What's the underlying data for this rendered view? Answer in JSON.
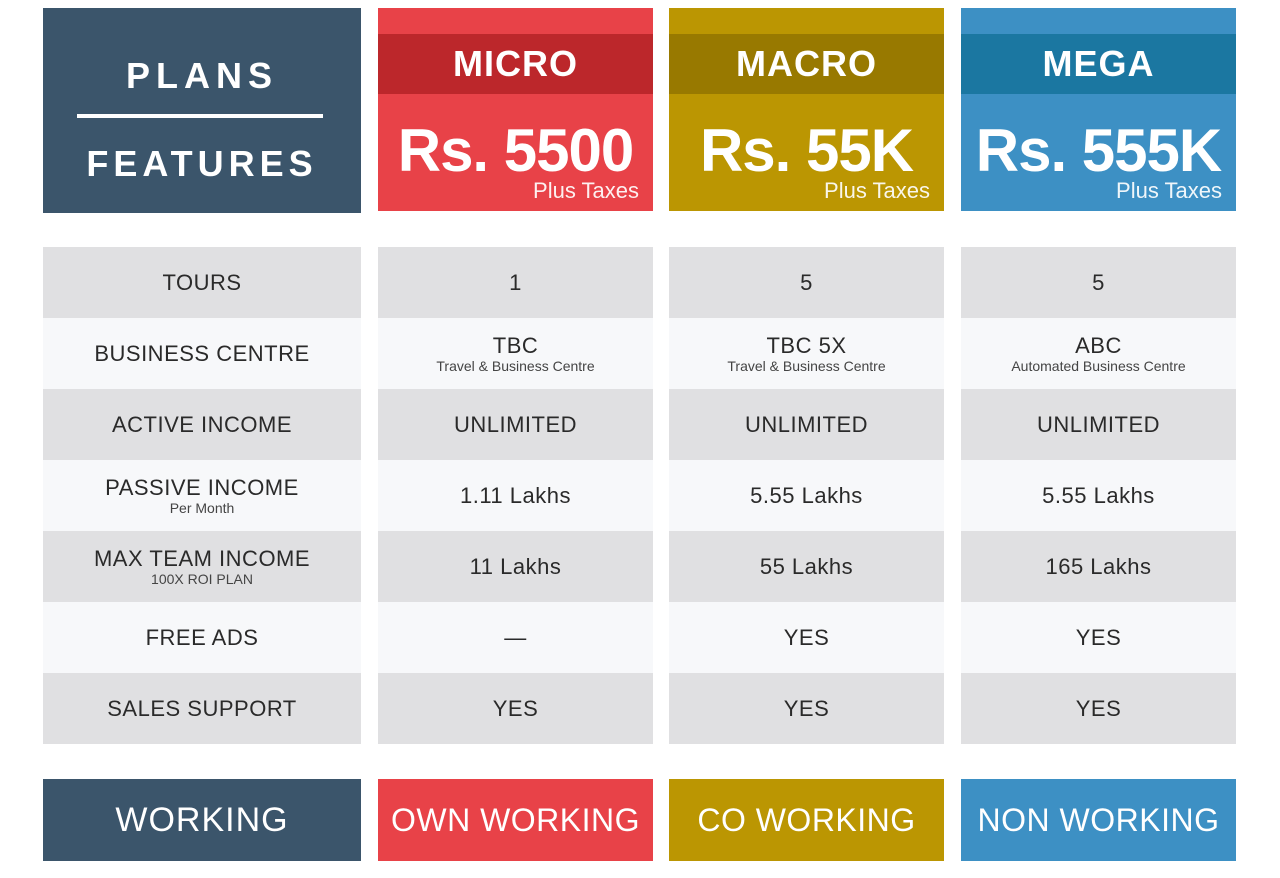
{
  "header": {
    "plans_label": "PLANS",
    "features_label": "FEATURES"
  },
  "plans": [
    {
      "name": "MICRO",
      "price": "Rs. 5500",
      "taxes": "Plus Taxes",
      "color": "#e84248"
    },
    {
      "name": "MACRO",
      "price": "Rs. 55K",
      "taxes": "Plus Taxes",
      "color": "#bb9602"
    },
    {
      "name": "MEGA",
      "price": "Rs. 555K",
      "taxes": "Plus Taxes",
      "color": "#3d90c4"
    }
  ],
  "rows": [
    {
      "feature": "TOURS",
      "feature_sub": "",
      "values": [
        {
          "main": "1",
          "sub": ""
        },
        {
          "main": "5",
          "sub": ""
        },
        {
          "main": "5",
          "sub": ""
        }
      ]
    },
    {
      "feature": "BUSINESS CENTRE",
      "feature_sub": "",
      "values": [
        {
          "main": "TBC",
          "sub": "Travel & Business Centre"
        },
        {
          "main": "TBC 5X",
          "sub": "Travel & Business Centre"
        },
        {
          "main": "ABC",
          "sub": "Automated Business Centre"
        }
      ]
    },
    {
      "feature": "ACTIVE INCOME",
      "feature_sub": "",
      "values": [
        {
          "main": "UNLIMITED",
          "sub": ""
        },
        {
          "main": "UNLIMITED",
          "sub": ""
        },
        {
          "main": "UNLIMITED",
          "sub": ""
        }
      ]
    },
    {
      "feature": "PASSIVE INCOME",
      "feature_sub": "Per Month",
      "values": [
        {
          "main": "1.11 Lakhs",
          "sub": ""
        },
        {
          "main": "5.55 Lakhs",
          "sub": ""
        },
        {
          "main": "5.55 Lakhs",
          "sub": ""
        }
      ]
    },
    {
      "feature": "MAX TEAM INCOME",
      "feature_sub": "100X ROI PLAN",
      "values": [
        {
          "main": "11 Lakhs",
          "sub": ""
        },
        {
          "main": "55 Lakhs",
          "sub": ""
        },
        {
          "main": "165 Lakhs",
          "sub": ""
        }
      ]
    },
    {
      "feature": "FREE ADS",
      "feature_sub": "",
      "values": [
        {
          "main": "—",
          "sub": ""
        },
        {
          "main": "YES",
          "sub": ""
        },
        {
          "main": "YES",
          "sub": ""
        }
      ]
    },
    {
      "feature": "SALES SUPPORT",
      "feature_sub": "",
      "values": [
        {
          "main": "YES",
          "sub": ""
        },
        {
          "main": "YES",
          "sub": ""
        },
        {
          "main": "YES",
          "sub": ""
        }
      ]
    }
  ],
  "footer": {
    "label": "WORKING",
    "values": [
      "OWN WORKING",
      "CO WORKING",
      "NON WORKING"
    ]
  }
}
